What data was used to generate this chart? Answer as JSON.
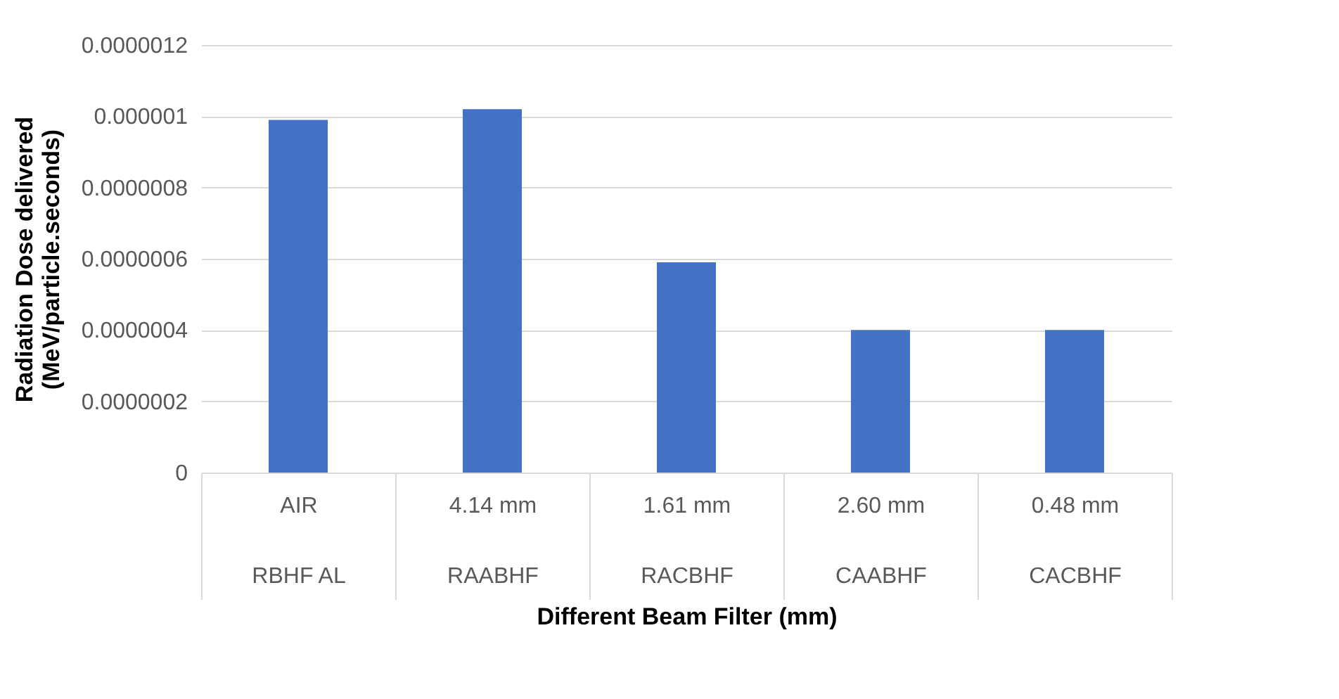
{
  "chart_data": {
    "type": "bar",
    "xlabel": "Different Beam Filter (mm)",
    "ylabel": "Radiation Dose delivered\n(MeV/particle.seconds)",
    "categories": [
      "AIR\nRBHF AL",
      "4.14 mm\nRAABHF",
      "1.61 mm\nRACBHF",
      "2.60 mm\nCAABHF",
      "0.48 mm\nCACBHF"
    ],
    "values": [
      9.9e-07,
      1.02e-06,
      5.9e-07,
      4e-07,
      4e-07
    ],
    "color": "#4472c4",
    "ylim": [
      0,
      1.2e-06
    ],
    "yticks": [
      {
        "value": 0,
        "label": "0"
      },
      {
        "value": 2e-07,
        "label": "0.0000002"
      },
      {
        "value": 4e-07,
        "label": "0.0000004"
      },
      {
        "value": 6e-07,
        "label": "0.0000006"
      },
      {
        "value": 8e-07,
        "label": "0.0000008"
      },
      {
        "value": 1e-06,
        "label": "0.000001"
      },
      {
        "value": 1.2e-06,
        "label": "0.0000012"
      }
    ],
    "grid": "y"
  }
}
